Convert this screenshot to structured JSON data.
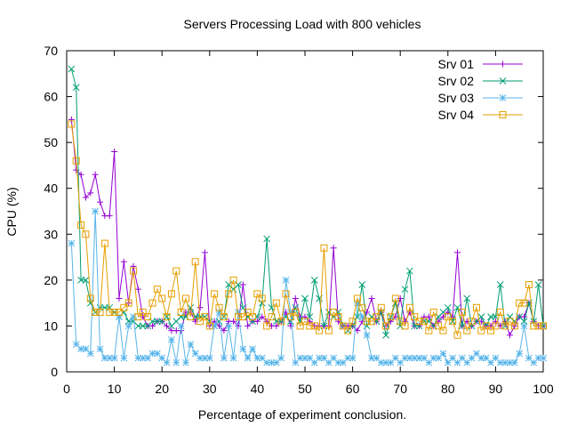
{
  "chart_data": {
    "type": "line",
    "title": "Servers Processing Load with 800 vehicles",
    "xlabel": "Percentage of experiment conclusion.",
    "ylabel": "CPU (%)",
    "xlim": [
      0,
      100
    ],
    "ylim": [
      0,
      70
    ],
    "xticks": [
      0,
      10,
      20,
      30,
      40,
      50,
      60,
      70,
      80,
      90,
      100
    ],
    "yticks": [
      0,
      10,
      20,
      30,
      40,
      50,
      60,
      70
    ],
    "grid": false,
    "legend_position": "top-right",
    "series": [
      {
        "name": "Srv 01",
        "color": "#9400d3",
        "marker": "plus",
        "values": [
          55,
          44,
          43,
          38,
          39,
          43,
          37,
          34,
          34,
          48,
          16,
          24,
          15,
          23,
          18,
          12,
          10,
          10,
          11,
          11,
          10,
          9,
          9,
          9,
          13,
          13,
          11,
          14,
          26,
          10,
          11,
          10,
          9,
          11,
          11,
          10,
          19,
          10,
          11,
          11,
          12,
          11,
          10,
          10,
          11,
          13,
          10,
          16,
          12,
          12,
          11,
          10,
          10,
          10,
          10,
          27,
          11,
          10,
          10,
          10,
          9,
          11,
          13,
          16,
          11,
          13,
          10,
          11,
          12,
          16,
          11,
          13,
          10,
          10,
          12,
          12,
          10,
          11,
          12,
          13,
          12,
          26,
          10,
          11,
          10,
          11,
          11,
          10,
          10,
          11,
          10,
          11,
          8,
          10,
          12,
          12,
          15,
          11,
          10,
          10
        ]
      },
      {
        "name": "Srv 02",
        "color": "#009e73",
        "marker": "cross",
        "values": [
          66,
          62,
          20,
          20,
          15,
          13,
          14,
          14,
          14,
          13,
          12,
          13,
          11,
          11,
          10,
          10,
          10,
          11,
          11,
          11,
          12,
          10,
          11,
          12,
          12,
          14,
          12,
          12,
          12,
          11,
          10,
          11,
          12,
          19,
          18,
          19,
          14,
          12,
          11,
          12,
          15,
          29,
          14,
          11,
          11,
          12,
          11,
          14,
          11,
          16,
          12,
          20,
          16,
          10,
          13,
          12,
          13,
          10,
          9,
          10,
          12,
          19,
          10,
          12,
          11,
          13,
          8,
          12,
          15,
          10,
          18,
          22,
          10,
          10,
          11,
          11,
          10,
          12,
          13,
          14,
          11,
          14,
          10,
          16,
          10,
          11,
          12,
          10,
          12,
          12,
          19,
          10,
          12,
          11,
          12,
          11,
          15,
          11,
          19,
          10
        ]
      },
      {
        "name": "Srv 03",
        "color": "#56b4e9",
        "marker": "star",
        "values": [
          28,
          6,
          5,
          5,
          4,
          35,
          5,
          3,
          3,
          3,
          12,
          3,
          10,
          12,
          3,
          3,
          3,
          4,
          4,
          3,
          2,
          7,
          2,
          10,
          2,
          6,
          4,
          3,
          3,
          3,
          10,
          13,
          3,
          10,
          3,
          13,
          5,
          3,
          5,
          3,
          3,
          2,
          2,
          2,
          3,
          20,
          13,
          2,
          3,
          3,
          3,
          2,
          3,
          3,
          2,
          3,
          2,
          2,
          3,
          3,
          15,
          12,
          8,
          3,
          3,
          2,
          2,
          2,
          3,
          2,
          3,
          3,
          3,
          3,
          3,
          2,
          3,
          3,
          4,
          2,
          3,
          2,
          3,
          2,
          3,
          4,
          3,
          3,
          2,
          3,
          2,
          2,
          2,
          2,
          4,
          10,
          3,
          2,
          3,
          3
        ]
      },
      {
        "name": "Srv 04",
        "color": "#e69f00",
        "marker": "square",
        "values": [
          54,
          46,
          32,
          30,
          16,
          13,
          13,
          28,
          13,
          13,
          13,
          14,
          15,
          22,
          12,
          13,
          12,
          15,
          18,
          16,
          12,
          17,
          22,
          13,
          16,
          12,
          24,
          11,
          12,
          10,
          17,
          14,
          12,
          17,
          20,
          12,
          12,
          13,
          12,
          17,
          16,
          10,
          12,
          15,
          11,
          17,
          12,
          13,
          10,
          11,
          10,
          10,
          9,
          27,
          9,
          13,
          12,
          10,
          9,
          11,
          16,
          14,
          11,
          11,
          12,
          14,
          10,
          12,
          16,
          11,
          10,
          14,
          12,
          11,
          11,
          9,
          13,
          10,
          9,
          12,
          11,
          8,
          13,
          9,
          11,
          14,
          9,
          10,
          9,
          10,
          13,
          10,
          11,
          10,
          15,
          15,
          19,
          10,
          10,
          10
        ]
      }
    ]
  }
}
